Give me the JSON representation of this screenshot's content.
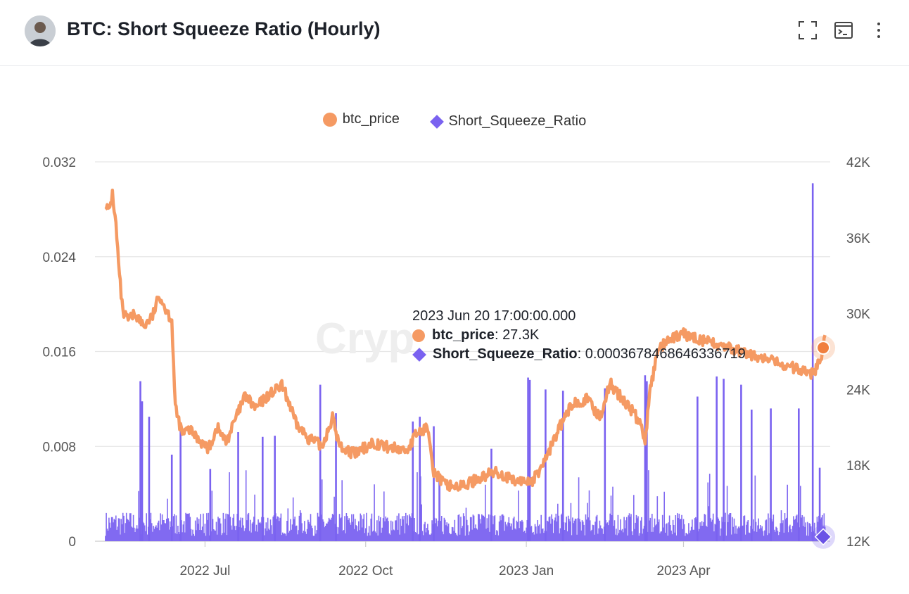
{
  "header": {
    "title": "BTC: Short Squeeze Ratio (Hourly)",
    "icons": [
      "avatar",
      "fullscreen-icon",
      "console-icon",
      "more-vertical-icon"
    ]
  },
  "legend": [
    {
      "name": "btc_price",
      "color": "#f59a63",
      "shape": "circle"
    },
    {
      "name": "Short_Squeeze_Ratio",
      "color": "#7a62f0",
      "shape": "diamond"
    }
  ],
  "watermark": "Cryp",
  "tooltip": {
    "time": "2023 Jun 20 17:00:00.000",
    "rows": [
      {
        "key": "btc_price",
        "value": "27.3K"
      },
      {
        "key": "Short_Squeeze_Ratio",
        "value": "0.0003678468646336719"
      }
    ]
  },
  "chart_data": {
    "type": "line",
    "x_tick_labels": [
      "2022 Jul",
      "2022 Oct",
      "2023 Jan",
      "2023 Apr"
    ],
    "x_ticks": [
      "2022-07-01",
      "2022-10-01",
      "2023-01-01",
      "2023-04-01"
    ],
    "x_range": [
      "2022-05-05",
      "2023-06-21"
    ],
    "y_left": {
      "ticks": [
        0,
        0.008,
        0.016,
        0.024,
        0.032
      ],
      "tick_labels": [
        "0",
        "0.008",
        "0.016",
        "0.024",
        "0.032"
      ],
      "range": [
        0,
        0.032
      ]
    },
    "y_right": {
      "ticks": [
        12000,
        18000,
        24000,
        30000,
        36000,
        42000
      ],
      "tick_labels": [
        "12K",
        "18K",
        "24K",
        "30K",
        "36K",
        "42K"
      ],
      "range": [
        12000,
        42000
      ]
    },
    "grid": true,
    "legend_position": "top-center",
    "series": [
      {
        "name": "btc_price",
        "axis": "right",
        "color": "#f59a63",
        "points": [
          [
            "2022-05-05",
            38700
          ],
          [
            "2022-05-07",
            38000
          ],
          [
            "2022-05-09",
            39500
          ],
          [
            "2022-05-11",
            37000
          ],
          [
            "2022-05-13",
            33000
          ],
          [
            "2022-05-15",
            30000
          ],
          [
            "2022-05-18",
            29500
          ],
          [
            "2022-05-22",
            30000
          ],
          [
            "2022-05-27",
            29000
          ],
          [
            "2022-06-01",
            29800
          ],
          [
            "2022-06-05",
            31500
          ],
          [
            "2022-06-08",
            30500
          ],
          [
            "2022-06-12",
            29500
          ],
          [
            "2022-06-14",
            22500
          ],
          [
            "2022-06-18",
            20500
          ],
          [
            "2022-06-22",
            20800
          ],
          [
            "2022-06-28",
            20000
          ],
          [
            "2022-07-03",
            19300
          ],
          [
            "2022-07-08",
            21000
          ],
          [
            "2022-07-13",
            19800
          ],
          [
            "2022-07-18",
            21500
          ],
          [
            "2022-07-24",
            23500
          ],
          [
            "2022-07-30",
            22500
          ],
          [
            "2022-08-06",
            23500
          ],
          [
            "2022-08-14",
            24300
          ],
          [
            "2022-08-18",
            23000
          ],
          [
            "2022-08-22",
            21300
          ],
          [
            "2022-08-29",
            20200
          ],
          [
            "2022-09-06",
            19500
          ],
          [
            "2022-09-12",
            21800
          ],
          [
            "2022-09-16",
            19500
          ],
          [
            "2022-09-25",
            18900
          ],
          [
            "2022-10-05",
            19800
          ],
          [
            "2022-10-15",
            19400
          ],
          [
            "2022-10-25",
            19200
          ],
          [
            "2022-10-30",
            20500
          ],
          [
            "2022-11-06",
            21000
          ],
          [
            "2022-11-09",
            17500
          ],
          [
            "2022-11-15",
            16500
          ],
          [
            "2022-11-25",
            16300
          ],
          [
            "2022-12-05",
            17000
          ],
          [
            "2022-12-15",
            17500
          ],
          [
            "2022-12-25",
            16700
          ],
          [
            "2023-01-05",
            16800
          ],
          [
            "2023-01-12",
            18500
          ],
          [
            "2023-01-20",
            21000
          ],
          [
            "2023-01-28",
            23000
          ],
          [
            "2023-02-05",
            23200
          ],
          [
            "2023-02-12",
            21800
          ],
          [
            "2023-02-18",
            24500
          ],
          [
            "2023-02-25",
            23200
          ],
          [
            "2023-03-03",
            22300
          ],
          [
            "2023-03-08",
            21000
          ],
          [
            "2023-03-10",
            20000
          ],
          [
            "2023-03-13",
            24000
          ],
          [
            "2023-03-18",
            27500
          ],
          [
            "2023-03-20",
            27500
          ],
          [
            "2023-03-24",
            27800
          ],
          [
            "2023-03-31",
            28400
          ],
          [
            "2023-06-15",
            25200
          ],
          [
            "2023-06-17",
            26300
          ],
          [
            "2023-06-19",
            26800
          ],
          [
            "2023-06-20",
            27300
          ],
          [
            "2023-06-21",
            28300
          ]
        ]
      },
      {
        "name": "Short_Squeeze_Ratio",
        "axis": "left",
        "color": "#7a62f0",
        "baseline_typical": 0.0015,
        "notable_spikes": [
          [
            "2022-05-25",
            0.0135
          ],
          [
            "2022-05-26",
            0.0118
          ],
          [
            "2022-05-30",
            0.0105
          ],
          [
            "2022-06-12",
            0.0073
          ],
          [
            "2022-06-17",
            0.0095
          ],
          [
            "2022-07-04",
            0.0061
          ],
          [
            "2022-07-20",
            0.0092
          ],
          [
            "2022-08-03",
            0.0088
          ],
          [
            "2022-08-10",
            0.0089
          ],
          [
            "2022-09-05",
            0.0132
          ],
          [
            "2022-09-14",
            0.0108
          ],
          [
            "2022-10-28",
            0.0101
          ],
          [
            "2022-11-01",
            0.0105
          ],
          [
            "2022-11-09",
            0.0097
          ],
          [
            "2022-12-12",
            0.0078
          ],
          [
            "2023-01-02",
            0.0138
          ],
          [
            "2023-01-03",
            0.0136
          ],
          [
            "2023-01-12",
            0.0128
          ],
          [
            "2023-01-22",
            0.0127
          ],
          [
            "2023-02-15",
            0.0129
          ],
          [
            "2023-03-10",
            0.014
          ],
          [
            "2023-03-11",
            0.0135
          ],
          [
            "2023-04-09",
            0.0122
          ],
          [
            "2023-04-20",
            0.0139
          ],
          [
            "2023-04-24",
            0.0137
          ],
          [
            "2023-05-04",
            0.0132
          ],
          [
            "2023-05-10",
            0.0111
          ],
          [
            "2023-05-21",
            0.0112
          ],
          [
            "2023-06-06",
            0.0112
          ],
          [
            "2023-06-14",
            0.0302
          ],
          [
            "2023-06-18",
            0.0062
          ],
          [
            "2023-06-20",
            0.00036784686463367
          ]
        ]
      }
    ]
  }
}
